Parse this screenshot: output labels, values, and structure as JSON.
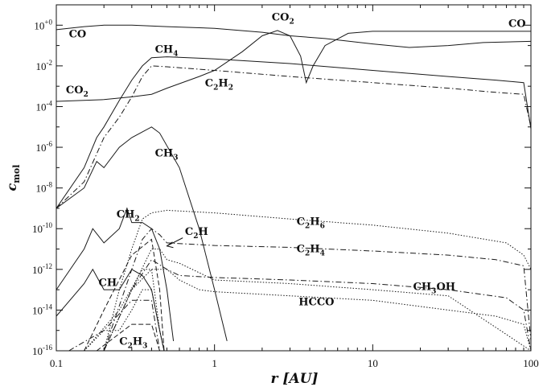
{
  "chart_data": {
    "type": "line",
    "title": "",
    "xlabel": "r [AU]",
    "ylabel": "c_mol",
    "xscale": "log",
    "yscale": "log",
    "xlim": [
      0.1,
      100
    ],
    "ylim": [
      1e-16,
      10
    ],
    "grid": false,
    "legend": "none (inline curve labels)",
    "x_ticks": [
      {
        "value": 0.1,
        "label": "0.1"
      },
      {
        "value": 1,
        "label": "1"
      },
      {
        "value": 10,
        "label": "10"
      },
      {
        "value": 100,
        "label": "100"
      }
    ],
    "y_ticks": [
      {
        "exp": 0,
        "label": "10+0"
      },
      {
        "exp": -2,
        "label": "10-2"
      },
      {
        "exp": -4,
        "label": "10-4"
      },
      {
        "exp": -6,
        "label": "10-6"
      },
      {
        "exp": -8,
        "label": "10-8"
      },
      {
        "exp": -10,
        "label": "10-10"
      },
      {
        "exp": -12,
        "label": "10-12"
      },
      {
        "exp": -14,
        "label": "10-14"
      },
      {
        "exp": -16,
        "label": "10-16"
      }
    ],
    "series": [
      {
        "name": "CO",
        "dash": "solid",
        "points": [
          [
            0.1,
            0.6
          ],
          [
            0.15,
            0.85
          ],
          [
            0.2,
            1.0
          ],
          [
            0.3,
            1.0
          ],
          [
            0.5,
            0.85
          ],
          [
            1,
            0.7
          ],
          [
            2,
            0.45
          ],
          [
            3,
            0.3
          ],
          [
            5,
            0.22
          ],
          [
            10,
            0.12
          ],
          [
            17,
            0.08
          ],
          [
            30,
            0.1
          ],
          [
            50,
            0.14
          ],
          [
            100,
            0.16
          ]
        ]
      },
      {
        "name": "CO2",
        "dash": "solid",
        "points": [
          [
            0.1,
            0.00018
          ],
          [
            0.2,
            0.00022
          ],
          [
            0.3,
            0.0003
          ],
          [
            0.4,
            0.0004
          ],
          [
            0.5,
            0.0008
          ],
          [
            0.8,
            0.003
          ],
          [
            1,
            0.006
          ],
          [
            1.5,
            0.05
          ],
          [
            2,
            0.3
          ],
          [
            2.5,
            0.55
          ],
          [
            3,
            0.3
          ],
          [
            3.5,
            0.03
          ],
          [
            3.8,
            0.0015
          ],
          [
            4.2,
            0.01
          ],
          [
            5,
            0.1
          ],
          [
            7,
            0.4
          ],
          [
            10,
            0.5
          ],
          [
            20,
            0.5
          ],
          [
            50,
            0.5
          ],
          [
            90,
            0.5
          ],
          [
            100,
            0.5
          ]
        ]
      },
      {
        "name": "CH4",
        "dash": "solid",
        "points": [
          [
            0.1,
            1e-09
          ],
          [
            0.15,
            1e-07
          ],
          [
            0.18,
            3e-06
          ],
          [
            0.2,
            1e-05
          ],
          [
            0.25,
            0.0002
          ],
          [
            0.3,
            0.002
          ],
          [
            0.35,
            0.01
          ],
          [
            0.4,
            0.025
          ],
          [
            0.5,
            0.028
          ],
          [
            1,
            0.022
          ],
          [
            3,
            0.013
          ],
          [
            10,
            0.006
          ],
          [
            30,
            0.003
          ],
          [
            60,
            0.002
          ],
          [
            90,
            0.0015
          ],
          [
            100,
            8e-06
          ]
        ]
      },
      {
        "name": "C2H2",
        "dash": "dashdot",
        "points": [
          [
            0.1,
            1e-09
          ],
          [
            0.15,
            2e-08
          ],
          [
            0.2,
            3e-06
          ],
          [
            0.25,
            3e-05
          ],
          [
            0.3,
            0.0003
          ],
          [
            0.35,
            0.003
          ],
          [
            0.4,
            0.01
          ],
          [
            0.5,
            0.009
          ],
          [
            1,
            0.006
          ],
          [
            3,
            0.003
          ],
          [
            10,
            0.0015
          ],
          [
            30,
            0.0008
          ],
          [
            60,
            0.0005
          ],
          [
            90,
            0.0004
          ],
          [
            100,
            1e-05
          ]
        ]
      },
      {
        "name": "CH3",
        "dash": "solid",
        "points": [
          [
            0.1,
            1e-09
          ],
          [
            0.15,
            1e-08
          ],
          [
            0.18,
            2e-07
          ],
          [
            0.2,
            1e-07
          ],
          [
            0.25,
            1e-06
          ],
          [
            0.3,
            3e-06
          ],
          [
            0.4,
            1e-05
          ],
          [
            0.45,
            5e-06
          ],
          [
            0.6,
            1e-07
          ],
          [
            0.8,
            1e-10
          ],
          [
            1,
            1e-13
          ],
          [
            1.2,
            3e-16
          ]
        ]
      },
      {
        "name": "CH2",
        "dash": "solid",
        "points": [
          [
            0.1,
            1e-13
          ],
          [
            0.15,
            1e-11
          ],
          [
            0.17,
            1e-10
          ],
          [
            0.2,
            2e-11
          ],
          [
            0.25,
            1e-10
          ],
          [
            0.28,
            1e-09
          ],
          [
            0.3,
            2e-10
          ],
          [
            0.35,
            2e-10
          ],
          [
            0.4,
            1e-10
          ],
          [
            0.45,
            1e-11
          ],
          [
            0.5,
            1e-13
          ],
          [
            0.55,
            3e-16
          ]
        ]
      },
      {
        "name": "CH",
        "dash": "solid",
        "points": [
          [
            0.1,
            5e-15
          ],
          [
            0.15,
            2e-13
          ],
          [
            0.17,
            1e-12
          ],
          [
            0.2,
            1e-13
          ],
          [
            0.25,
            1e-13
          ],
          [
            0.3,
            1e-12
          ],
          [
            0.35,
            5e-13
          ],
          [
            0.4,
            1e-13
          ],
          [
            0.45,
            1e-15
          ],
          [
            0.48,
            1e-16
          ]
        ]
      },
      {
        "name": "C2H6",
        "dash": "dotted",
        "points": [
          [
            0.2,
            1e-16
          ],
          [
            0.25,
            1e-13
          ],
          [
            0.3,
            1e-11
          ],
          [
            0.35,
            3e-10
          ],
          [
            0.4,
            6e-10
          ],
          [
            0.5,
            8e-10
          ],
          [
            1,
            6e-10
          ],
          [
            3,
            3e-10
          ],
          [
            10,
            1.5e-10
          ],
          [
            30,
            6e-11
          ],
          [
            70,
            2e-11
          ],
          [
            90,
            5e-12
          ],
          [
            100,
            1e-12
          ]
        ]
      },
      {
        "name": "C2H4",
        "dash": "dashdot",
        "points": [
          [
            0.2,
            1e-16
          ],
          [
            0.3,
            1e-12
          ],
          [
            0.35,
            3e-11
          ],
          [
            0.4,
            1e-10
          ],
          [
            0.45,
            5e-11
          ],
          [
            0.5,
            2e-11
          ],
          [
            1,
            1.5e-11
          ],
          [
            3,
            1.2e-11
          ],
          [
            10,
            8e-12
          ],
          [
            30,
            5e-12
          ],
          [
            60,
            3e-12
          ],
          [
            90,
            1.5e-12
          ],
          [
            100,
            3e-16
          ]
        ]
      },
      {
        "name": "C2H",
        "dash": "dotted",
        "points": [
          [
            0.2,
            1e-16
          ],
          [
            0.3,
            1e-13
          ],
          [
            0.4,
            1e-11
          ],
          [
            0.45,
            1e-11
          ],
          [
            0.5,
            3e-12
          ],
          [
            0.6,
            2e-12
          ],
          [
            1,
            3e-13
          ],
          [
            3,
            2e-13
          ],
          [
            10,
            1e-13
          ],
          [
            30,
            5e-14
          ],
          [
            100,
            1e-16
          ]
        ]
      },
      {
        "name": "CH3OH",
        "dash": "dashdot",
        "points": [
          [
            0.2,
            1e-16
          ],
          [
            0.3,
            1e-13
          ],
          [
            0.4,
            3e-12
          ],
          [
            0.5,
            1e-12
          ],
          [
            0.6,
            5e-13
          ],
          [
            1,
            4e-13
          ],
          [
            3,
            3e-13
          ],
          [
            10,
            2e-13
          ],
          [
            30,
            1e-13
          ],
          [
            70,
            4e-14
          ],
          [
            90,
            1e-14
          ],
          [
            100,
            1e-16
          ]
        ]
      },
      {
        "name": "HCCO",
        "dash": "dotted",
        "points": [
          [
            0.2,
            1e-16
          ],
          [
            0.3,
            1e-13
          ],
          [
            0.4,
            1e-12
          ],
          [
            0.5,
            1e-12
          ],
          [
            0.6,
            3e-13
          ],
          [
            0.8,
            1e-13
          ],
          [
            1,
            8e-14
          ],
          [
            3,
            5e-14
          ],
          [
            10,
            3e-14
          ],
          [
            30,
            1e-14
          ],
          [
            60,
            5e-15
          ],
          [
            90,
            2e-15
          ],
          [
            100,
            1e-16
          ]
        ]
      },
      {
        "name": "C2H3",
        "dash": "dotted",
        "points": [
          [
            0.15,
            1e-16
          ],
          [
            0.2,
            1e-15
          ],
          [
            0.25,
            1e-15
          ],
          [
            0.3,
            1e-14
          ],
          [
            0.35,
            1e-13
          ],
          [
            0.4,
            1e-13
          ],
          [
            0.45,
            1e-15
          ],
          [
            0.48,
            1e-16
          ]
        ]
      }
    ],
    "extra_curves": [
      {
        "dash": "dashed",
        "points": [
          [
            0.15,
            1e-16
          ],
          [
            0.2,
            1e-14
          ],
          [
            0.3,
            5e-12
          ],
          [
            0.4,
            3e-11
          ],
          [
            0.45,
            1e-13
          ],
          [
            0.48,
            1e-16
          ]
        ]
      },
      {
        "dash": "dotted",
        "points": [
          [
            0.15,
            1e-16
          ],
          [
            0.25,
            1e-14
          ],
          [
            0.35,
            1e-12
          ],
          [
            0.4,
            1e-12
          ],
          [
            0.45,
            1e-15
          ],
          [
            0.48,
            1e-16
          ]
        ]
      },
      {
        "dash": "dashdot",
        "points": [
          [
            0.12,
            1e-16
          ],
          [
            0.2,
            1e-15
          ],
          [
            0.3,
            3e-14
          ],
          [
            0.4,
            3e-14
          ],
          [
            0.45,
            1e-16
          ]
        ]
      },
      {
        "dash": "dashed",
        "points": [
          [
            0.18,
            1e-16
          ],
          [
            0.3,
            2e-15
          ],
          [
            0.4,
            2e-15
          ],
          [
            0.45,
            1e-16
          ]
        ]
      }
    ],
    "labels": [
      {
        "series": "CO",
        "main": "CO",
        "sub": "",
        "r": 0.12,
        "exp": -0.45
      },
      {
        "series": "CO",
        "main": "CO",
        "sub": "",
        "r": 72,
        "exp": 0.08
      },
      {
        "series": "CO2",
        "main": "CO",
        "sub": "2",
        "r": 2.3,
        "exp": 0.38
      },
      {
        "series": "CO2",
        "main": "CO",
        "sub": "2",
        "r": 0.115,
        "exp": -3.2
      },
      {
        "series": "CH4",
        "main": "CH",
        "sub": "4",
        "r": 0.42,
        "exp": -1.2
      },
      {
        "series": "C2H2",
        "main": "C2H2",
        "sub": "",
        "r": 0.87,
        "exp": -2.85
      },
      {
        "series": "CH3",
        "main": "CH",
        "sub": "3",
        "r": 0.42,
        "exp": -6.3
      },
      {
        "series": "CH2",
        "main": "CH",
        "sub": "2",
        "r": 0.24,
        "exp": -9.3
      },
      {
        "series": "C2H",
        "main": "C2H",
        "sub": "",
        "r": 0.65,
        "exp": -10.15
      },
      {
        "series": "C2H6",
        "main": "C2H6",
        "sub": "",
        "r": 3.3,
        "exp": -9.65
      },
      {
        "series": "C2H4",
        "main": "C2H4",
        "sub": "",
        "r": 3.3,
        "exp": -11.0
      },
      {
        "series": "CH",
        "main": "CH",
        "sub": "",
        "r": 0.185,
        "exp": -12.65
      },
      {
        "series": "CH3OH",
        "main": "CH3OH",
        "sub": "",
        "r": 18,
        "exp": -12.85
      },
      {
        "series": "HCCO",
        "main": "HCCO",
        "sub": "",
        "r": 3.4,
        "exp": -13.6
      },
      {
        "series": "C2H3",
        "main": "C2H3",
        "sub": "",
        "r": 0.25,
        "exp": -15.55
      }
    ]
  }
}
